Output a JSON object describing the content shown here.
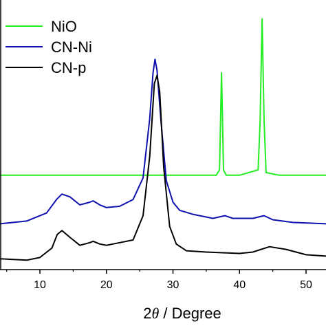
{
  "chart_data": {
    "type": "line",
    "xlabel_prefix": "2",
    "xlabel_symbol": "θ",
    "xlabel_suffix": " / Degree",
    "xlim": [
      4,
      53
    ],
    "xticks": [
      10,
      20,
      30,
      40,
      50
    ],
    "xtick_labels": [
      "10",
      "20",
      "30",
      "40",
      "50"
    ],
    "ylabel": "",
    "grid": false,
    "legend_position": "top-left",
    "series": [
      {
        "name": "NiO",
        "color": "#22ee22",
        "x": [
          4,
          10,
          20,
          30,
          36.5,
          37.0,
          37.3,
          37.6,
          38.0,
          40,
          42.8,
          43.1,
          43.4,
          43.7,
          44.0,
          46,
          50,
          53
        ],
        "y": [
          0.35,
          0.35,
          0.35,
          0.35,
          0.35,
          0.37,
          0.73,
          0.37,
          0.35,
          0.35,
          0.37,
          0.55,
          0.93,
          0.55,
          0.36,
          0.35,
          0.35,
          0.35
        ]
      },
      {
        "name": "CN-Ni",
        "color": "#1010b0",
        "x": [
          4,
          8,
          11,
          12.5,
          13.3,
          14.5,
          16,
          17.5,
          18,
          19,
          20,
          22,
          24,
          25.5,
          26.5,
          27.0,
          27.3,
          27.6,
          28.2,
          29,
          30,
          31,
          33,
          36,
          37.8,
          39,
          42,
          43.7,
          45,
          48,
          53
        ],
        "y": [
          0.17,
          0.18,
          0.21,
          0.26,
          0.28,
          0.27,
          0.24,
          0.25,
          0.255,
          0.24,
          0.23,
          0.235,
          0.26,
          0.34,
          0.56,
          0.73,
          0.78,
          0.74,
          0.55,
          0.33,
          0.25,
          0.22,
          0.205,
          0.19,
          0.2,
          0.19,
          0.19,
          0.2,
          0.185,
          0.175,
          0.17
        ]
      },
      {
        "name": "CN-p",
        "color": "#000000",
        "x": [
          4,
          8,
          10,
          11.8,
          12.6,
          13.3,
          14.5,
          16,
          17.5,
          18,
          19,
          20,
          22,
          24,
          25.5,
          26.5,
          27.2,
          27.6,
          28.0,
          28.6,
          29.5,
          30.5,
          32,
          35,
          40,
          42,
          44.5,
          47,
          50,
          53
        ],
        "y": [
          0.04,
          0.035,
          0.045,
          0.08,
          0.13,
          0.145,
          0.12,
          0.09,
          0.1,
          0.105,
          0.095,
          0.09,
          0.1,
          0.11,
          0.2,
          0.42,
          0.69,
          0.72,
          0.66,
          0.38,
          0.16,
          0.095,
          0.07,
          0.065,
          0.06,
          0.065,
          0.085,
          0.075,
          0.055,
          0.05
        ]
      }
    ]
  }
}
